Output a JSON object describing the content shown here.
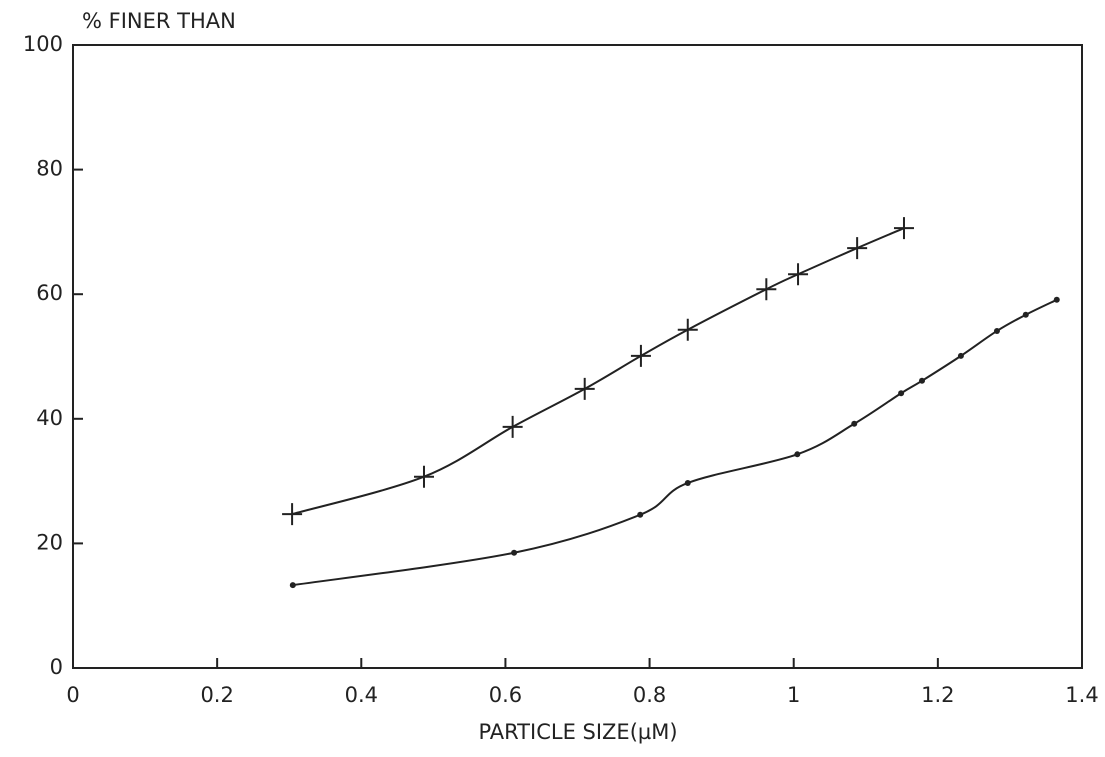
{
  "chart_data": {
    "type": "line",
    "y_label": "% FINER THAN",
    "x_label": "PARTICLE SIZE(µM)",
    "xlim": [
      0,
      1.4
    ],
    "xticks": [
      0,
      0.2,
      0.4,
      0.6,
      0.8,
      1,
      1.2,
      1.4
    ],
    "ylim": [
      0,
      100
    ],
    "yticks": [
      0,
      20,
      40,
      60,
      80,
      100
    ],
    "grid": false,
    "series": [
      {
        "color": "#222222",
        "marker": "plus",
        "x": [
          0.304,
          0.487,
          0.61,
          0.71,
          0.788,
          0.853,
          0.962,
          1.006,
          1.088,
          1.153
        ],
        "values": [
          24.7,
          30.7,
          38.7,
          44.8,
          50.1,
          54.3,
          60.8,
          63.2,
          67.4,
          70.6
        ]
      },
      {
        "color": "#222222",
        "marker": "dot",
        "x": [
          0.305,
          0.612,
          0.787,
          0.853,
          1.005,
          1.084,
          1.149,
          1.178,
          1.232,
          1.282,
          1.322,
          1.365
        ],
        "values": [
          13.3,
          18.5,
          24.6,
          29.7,
          34.3,
          39.2,
          44.1,
          46.1,
          50.1,
          54.1,
          56.7,
          59.1
        ]
      }
    ]
  }
}
